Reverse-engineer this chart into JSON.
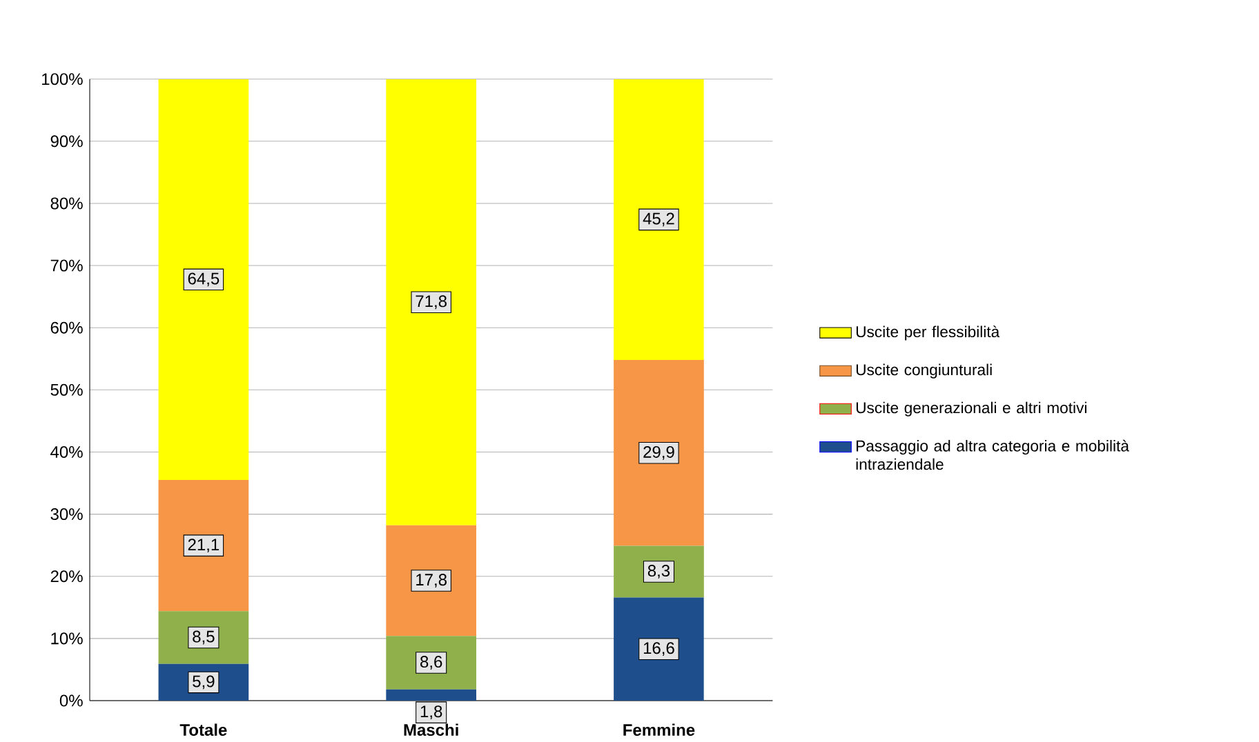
{
  "chart_data": {
    "type": "bar",
    "stacked": true,
    "categories": [
      "Totale",
      "Maschi",
      "Femmine"
    ],
    "series": [
      {
        "name": "Passaggio ad altra categoria e mobilità intraziendale",
        "color": "#1f4e8c",
        "values": [
          5.9,
          1.8,
          16.6
        ],
        "value_labels": [
          "5,9",
          "1,8",
          "16,6"
        ]
      },
      {
        "name": "Uscite generazionali e altri motivi",
        "color": "#8fb04a",
        "values": [
          8.5,
          8.6,
          8.3
        ],
        "value_labels": [
          "8,5",
          "8,6",
          "8,3"
        ]
      },
      {
        "name": "Uscite congiunturali",
        "color": "#f79646",
        "values": [
          21.1,
          17.8,
          29.9
        ],
        "value_labels": [
          "21,1",
          "17,8",
          "29,9"
        ]
      },
      {
        "name": "Uscite per flessibilità",
        "color": "#ffff00",
        "values": [
          64.5,
          71.8,
          45.2
        ],
        "value_labels": [
          "64,5",
          "71,8",
          "45,2"
        ]
      }
    ],
    "ylim": [
      0,
      100
    ],
    "yticks": [
      {
        "value": 0,
        "label": "0%"
      },
      {
        "value": 10,
        "label": "10%"
      },
      {
        "value": 20,
        "label": "20%"
      },
      {
        "value": 30,
        "label": "30%"
      },
      {
        "value": 40,
        "label": "40%"
      },
      {
        "value": 50,
        "label": "50%"
      },
      {
        "value": 60,
        "label": "60%"
      },
      {
        "value": 70,
        "label": "70%"
      },
      {
        "value": 80,
        "label": "80%"
      },
      {
        "value": 90,
        "label": "90%"
      },
      {
        "value": 100,
        "label": "100%"
      }
    ],
    "grid": "y",
    "legend": "right"
  }
}
